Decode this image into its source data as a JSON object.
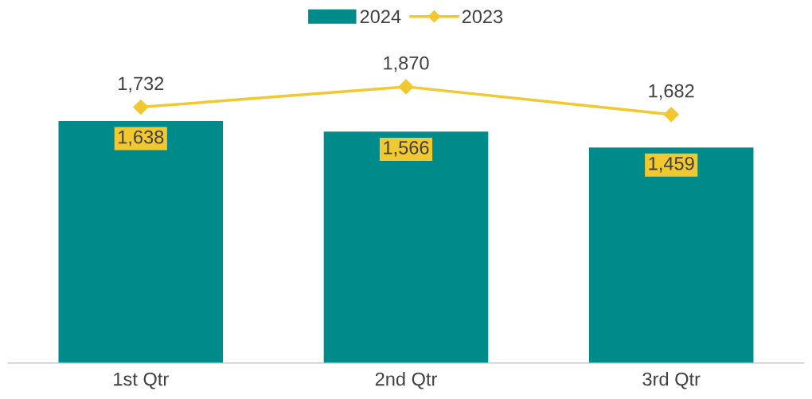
{
  "chart_data": {
    "type": "bar",
    "categories": [
      "1st Qtr",
      "2nd Qtr",
      "3rd Qtr"
    ],
    "series": [
      {
        "name": "2024",
        "color": "#008b8b",
        "values": [
          1638,
          1566,
          1459
        ],
        "value_labels": [
          "1,638",
          "1,566",
          "1,459"
        ]
      },
      {
        "name": "2023",
        "type": "line",
        "color": "#f2c830",
        "values": [
          1732,
          1870,
          1682
        ],
        "value_labels": [
          "1,732",
          "1,870",
          "1,682"
        ],
        "marker": "diamond"
      }
    ],
    "tick_labels": "x",
    "legend": "top",
    "grid": false
  }
}
